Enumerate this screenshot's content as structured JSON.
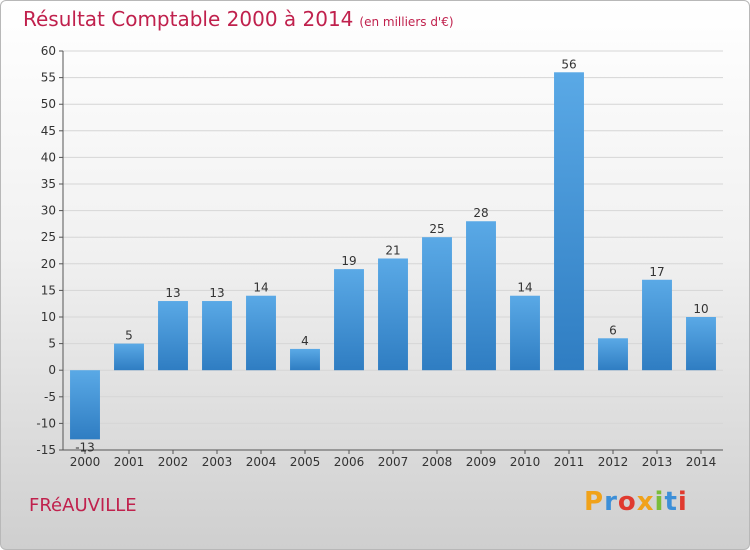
{
  "header": {
    "title": "Résultat Comptable 2000 à 2014",
    "subtitle": "(en milliers d'€)"
  },
  "footer": {
    "city": "FRéAUVILLE",
    "logo": {
      "letters": [
        "P",
        "r",
        "o",
        "x",
        "i",
        "t",
        "i"
      ],
      "colors": [
        "#f0a21a",
        "#3c8fd8",
        "#e03a2f",
        "#f0a21a",
        "#7abd3a",
        "#3c8fd8",
        "#e03a2f"
      ]
    }
  },
  "colors": {
    "bar_top": "#5aa9e6",
    "bar_bottom": "#2f7dc2",
    "title": "#c0214d"
  },
  "chart_data": {
    "type": "bar",
    "title": "Résultat Comptable 2000 à 2014",
    "subtitle": "(en milliers d'€)",
    "categories": [
      "2000",
      "2001",
      "2002",
      "2003",
      "2004",
      "2005",
      "2006",
      "2007",
      "2008",
      "2009",
      "2010",
      "2011",
      "2012",
      "2013",
      "2014"
    ],
    "values": [
      -13,
      5,
      13,
      13,
      14,
      4,
      19,
      21,
      25,
      28,
      14,
      56,
      6,
      17,
      10
    ],
    "ylim": [
      -15,
      60
    ],
    "yticks": [
      -15,
      -10,
      -5,
      0,
      5,
      10,
      15,
      20,
      25,
      30,
      35,
      40,
      45,
      50,
      55,
      60
    ],
    "grid": true,
    "legend": "none"
  }
}
